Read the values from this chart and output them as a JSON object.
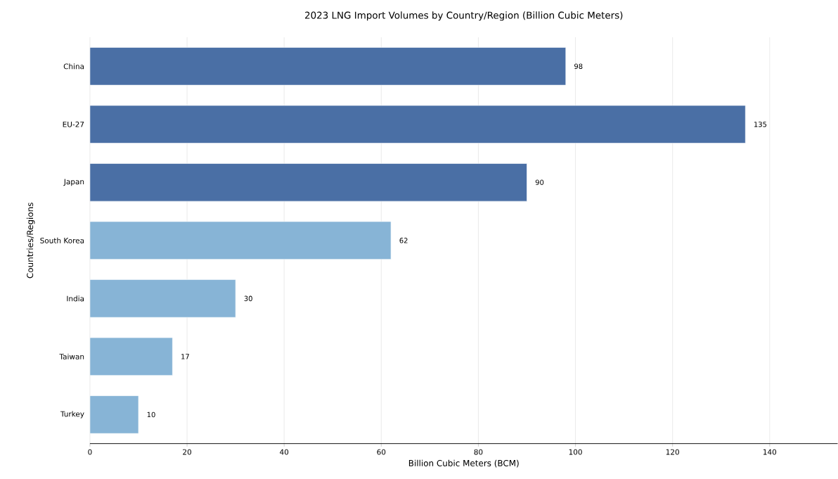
{
  "chart_data": {
    "type": "bar",
    "orientation": "horizontal",
    "title": "2023 LNG Import Volumes by Country/Region (Billion Cubic Meters)",
    "xlabel": "Billion Cubic Meters (BCM)",
    "ylabel": "Countries/Regions",
    "categories": [
      "China",
      "EU-27",
      "Japan",
      "South Korea",
      "India",
      "Taiwan",
      "Turkey"
    ],
    "values": [
      98,
      135,
      90,
      62,
      30,
      17,
      10
    ],
    "colors": [
      "#4a6fa5",
      "#4a6fa5",
      "#4a6fa5",
      "#87b4d6",
      "#87b4d6",
      "#87b4d6",
      "#87b4d6"
    ],
    "xlim": [
      0,
      154
    ],
    "xticks": [
      0,
      20,
      40,
      60,
      80,
      100,
      120,
      140
    ],
    "grid": "x",
    "data_labels": true
  }
}
